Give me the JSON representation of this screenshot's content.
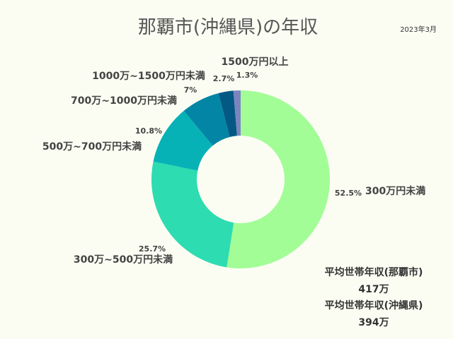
{
  "chart_data": {
    "type": "pie",
    "title": "那覇市(沖縄県)の年収",
    "date": "2023年3月",
    "slices": [
      {
        "label": "300万円未満",
        "value": 52.5,
        "pct_label": "52.5%",
        "color": "#a2fd97"
      },
      {
        "label": "300万~500万円未満",
        "value": 25.7,
        "pct_label": "25.7%",
        "color": "#2ddcb0"
      },
      {
        "label": "500万~700万円未満",
        "value": 10.8,
        "pct_label": "10.8%",
        "color": "#07b2b7"
      },
      {
        "label": "700万~1000万円未満",
        "value": 7,
        "pct_label": "7%",
        "color": "#0385a5"
      },
      {
        "label": "1000万~1500万円未満",
        "value": 2.7,
        "pct_label": "2.7%",
        "color": "#045884"
      },
      {
        "label": "1500万円以上",
        "value": 1.3,
        "pct_label": "1.3%",
        "color": "#7c84c0"
      }
    ]
  },
  "averages": [
    {
      "label": "平均世帯年収(那覇市)",
      "value": "417万"
    },
    {
      "label": "平均世帯年収(沖縄県)",
      "value": "394万"
    }
  ]
}
